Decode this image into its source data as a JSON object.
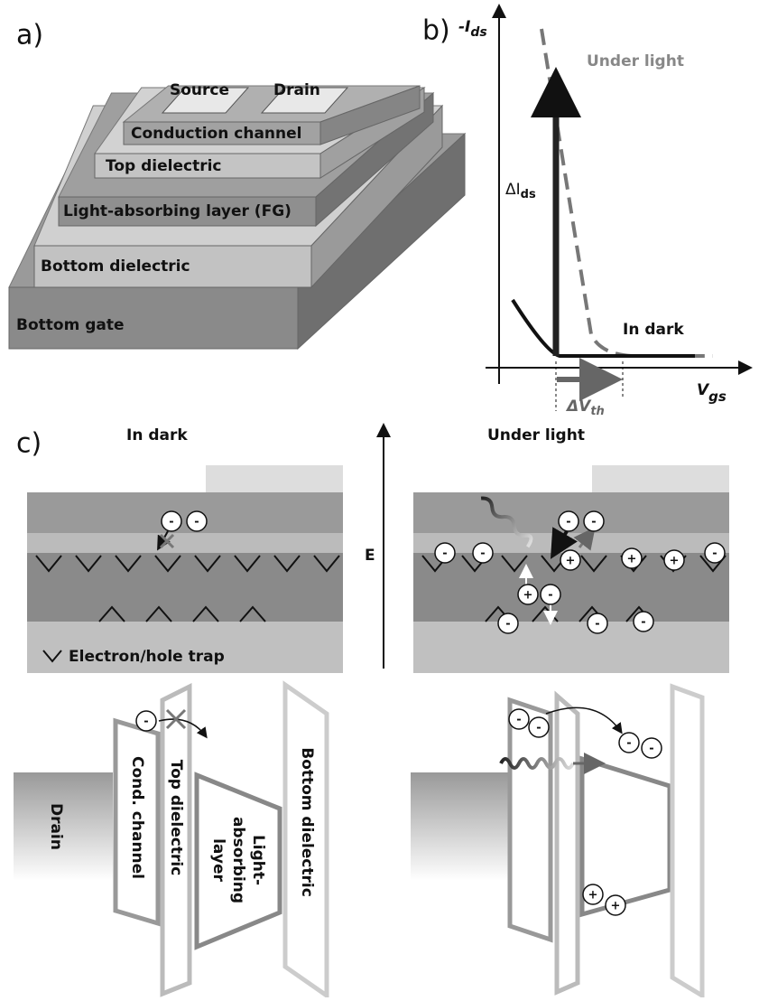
{
  "panel_a": {
    "label": "a)",
    "layers": {
      "source": "Source",
      "drain": "Drain",
      "channel": "Conduction channel",
      "top_dielectric": "Top dielectric",
      "absorber": "Light-absorbing layer (FG)",
      "bottom_dielectric": "Bottom dielectric",
      "gate": "Bottom gate"
    }
  },
  "panel_b": {
    "label": "b)",
    "y_axis": {
      "main": "-I",
      "sub": "ds"
    },
    "x_axis": {
      "main": "V",
      "sub": "gs"
    },
    "under_light": "Under light",
    "in_dark": "In dark",
    "delta_i": {
      "main": "ΔI",
      "sub": "ds"
    },
    "delta_v": {
      "main": "ΔV",
      "sub": "th"
    }
  },
  "panel_c": {
    "label": "c)",
    "dark_title": "In dark",
    "light_title": "Under light",
    "field": "E",
    "trap_legend": "Electron/hole trap",
    "drain": "Drain",
    "channel": "Cond. channel",
    "top_dielectric": "Top dielectric",
    "absorber_lines": [
      "Light-",
      "absorbing",
      "layer"
    ],
    "bottom_dielectric": "Bottom dielectric",
    "electron": "-",
    "hole": "+"
  }
}
